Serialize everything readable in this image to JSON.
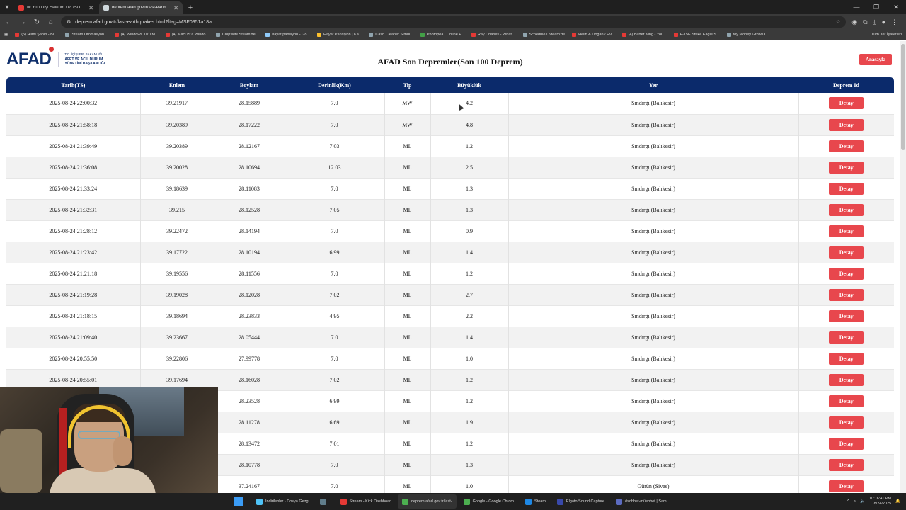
{
  "browser": {
    "tabs": [
      {
        "title": "İlk Yurt Dışı Seferim / POSOF S...",
        "fav_color": "#e53935",
        "active": false
      },
      {
        "title": "deprem.afad.gov.tr/last-earthq...",
        "fav_color": "#cfd8dc",
        "active": true
      }
    ],
    "url_host": "deprem.afad.gov.tr",
    "url_path": "/last-earthquakes.html?ftag=MSF0951a18a",
    "bookmarks": [
      {
        "label": "(5) Hilmi Şahin - Bü...",
        "color": "#e53935"
      },
      {
        "label": "Steam Otomasyon...",
        "color": "#90a4ae"
      },
      {
        "label": "(4) Windows 10'u M...",
        "color": "#e53935"
      },
      {
        "label": "(4) MacOS'a Windo...",
        "color": "#e53935"
      },
      {
        "label": "ChipWits Steam'de...",
        "color": "#90a4ae"
      },
      {
        "label": "hayat pansiyon - Go...",
        "color": "#90caf9"
      },
      {
        "label": "Hayat Pansiyon | Ka...",
        "color": "#fbc02d"
      },
      {
        "label": "Cash Cleaner Simul...",
        "color": "#90a4ae"
      },
      {
        "label": "Photopea | Online P...",
        "color": "#43a047"
      },
      {
        "label": "Ray Charles - What'...",
        "color": "#e53935"
      },
      {
        "label": "Schedule I Steam'de",
        "color": "#90a4ae"
      },
      {
        "label": "Helin & Doğan / EV...",
        "color": "#e53935"
      },
      {
        "label": "(4) Birder King - You...",
        "color": "#e53935"
      },
      {
        "label": "F-15E Strike Eagle S...",
        "color": "#e53935"
      },
      {
        "label": "My Money Grows O...",
        "color": "#90a4ae"
      }
    ],
    "bookmarks_all": "Tüm Yer İşaretleri"
  },
  "header": {
    "logo": "AFAD",
    "logo_lines": [
      "T.C. İÇİŞLERİ BAKANLIĞI",
      "AFET VE ACİL DURUM",
      "YÖNETİMİ BAŞKANLIĞI"
    ],
    "title": "AFAD Son Depremler(Son 100 Deprem)",
    "home_button": "Anasayfa"
  },
  "table": {
    "columns": [
      "Tarih(TS)",
      "Enlem",
      "Boylam",
      "Derinlik(Km)",
      "Tip",
      "Büyüklük",
      "Yer",
      "Deprem Id"
    ],
    "detail_label": "Detay",
    "rows": [
      [
        "2025-08-24 22:00:32",
        "39.21917",
        "28.15889",
        "7.0",
        "MW",
        "4.2",
        "Sındırgı (Balıkesir)"
      ],
      [
        "2025-08-24 21:58:18",
        "39.20389",
        "28.17222",
        "7.0",
        "MW",
        "4.8",
        "Sındırgı (Balıkesir)"
      ],
      [
        "2025-08-24 21:39:49",
        "39.20389",
        "28.12167",
        "7.03",
        "ML",
        "1.2",
        "Sındırgı (Balıkesir)"
      ],
      [
        "2025-08-24 21:36:08",
        "39.20028",
        "28.10694",
        "12.03",
        "ML",
        "2.5",
        "Sındırgı (Balıkesir)"
      ],
      [
        "2025-08-24 21:33:24",
        "39.18639",
        "28.11083",
        "7.0",
        "ML",
        "1.3",
        "Sındırgı (Balıkesir)"
      ],
      [
        "2025-08-24 21:32:31",
        "39.215",
        "28.12528",
        "7.05",
        "ML",
        "1.3",
        "Sındırgı (Balıkesir)"
      ],
      [
        "2025-08-24 21:28:12",
        "39.22472",
        "28.14194",
        "7.0",
        "ML",
        "0.9",
        "Sındırgı (Balıkesir)"
      ],
      [
        "2025-08-24 21:23:42",
        "39.17722",
        "28.10194",
        "6.99",
        "ML",
        "1.4",
        "Sındırgı (Balıkesir)"
      ],
      [
        "2025-08-24 21:21:18",
        "39.19556",
        "28.11556",
        "7.0",
        "ML",
        "1.2",
        "Sındırgı (Balıkesir)"
      ],
      [
        "2025-08-24 21:19:28",
        "39.19028",
        "28.12028",
        "7.02",
        "ML",
        "2.7",
        "Sındırgı (Balıkesir)"
      ],
      [
        "2025-08-24 21:18:15",
        "39.18694",
        "28.23833",
        "4.95",
        "ML",
        "2.2",
        "Sındırgı (Balıkesir)"
      ],
      [
        "2025-08-24 21:09:40",
        "39.23667",
        "28.05444",
        "7.0",
        "ML",
        "1.4",
        "Sındırgı (Balıkesir)"
      ],
      [
        "2025-08-24 20:55:50",
        "39.22806",
        "27.99778",
        "7.0",
        "ML",
        "1.0",
        "Sındırgı (Balıkesir)"
      ],
      [
        "2025-08-24 20:55:01",
        "39.17694",
        "28.16028",
        "7.02",
        "ML",
        "1.2",
        "Sındırgı (Balıkesir)"
      ],
      [
        "",
        "",
        "28.23528",
        "6.99",
        "ML",
        "1.2",
        "Sındırgı (Balıkesir)"
      ],
      [
        "",
        "",
        "28.11278",
        "6.69",
        "ML",
        "1.9",
        "Sındırgı (Balıkesir)"
      ],
      [
        "",
        "",
        "28.13472",
        "7.01",
        "ML",
        "1.2",
        "Sındırgı (Balıkesir)"
      ],
      [
        "",
        "",
        "28.10778",
        "7.0",
        "ML",
        "1.3",
        "Sındırgı (Balıkesir)"
      ],
      [
        "",
        "",
        "37.24167",
        "7.0",
        "ML",
        "1.0",
        "Gürün (Sivas)"
      ]
    ]
  },
  "taskbar": {
    "items": [
      {
        "label": "İndirilenler - Dosya Gezg",
        "color": "#4fc3f7",
        "active": false
      },
      {
        "label": "",
        "color": "#607d8b",
        "active": false
      },
      {
        "label": "Stream - Kick Dashboar",
        "color": "#e53935",
        "active": false
      },
      {
        "label": "deprem.afad.gov.tr/last-",
        "color": "#4caf50",
        "active": true
      },
      {
        "label": "Google - Google Chrom",
        "color": "#4caf50",
        "active": false
      },
      {
        "label": "Steam",
        "color": "#1e88e5",
        "active": false
      },
      {
        "label": "Elgato Sound Capture",
        "color": "#3949ab",
        "active": false
      },
      {
        "label": "#sohbet-müebbet | Sam",
        "color": "#5c6bc0",
        "active": false
      }
    ],
    "time": "10:16:41 PM",
    "date": "8/24/2025"
  }
}
